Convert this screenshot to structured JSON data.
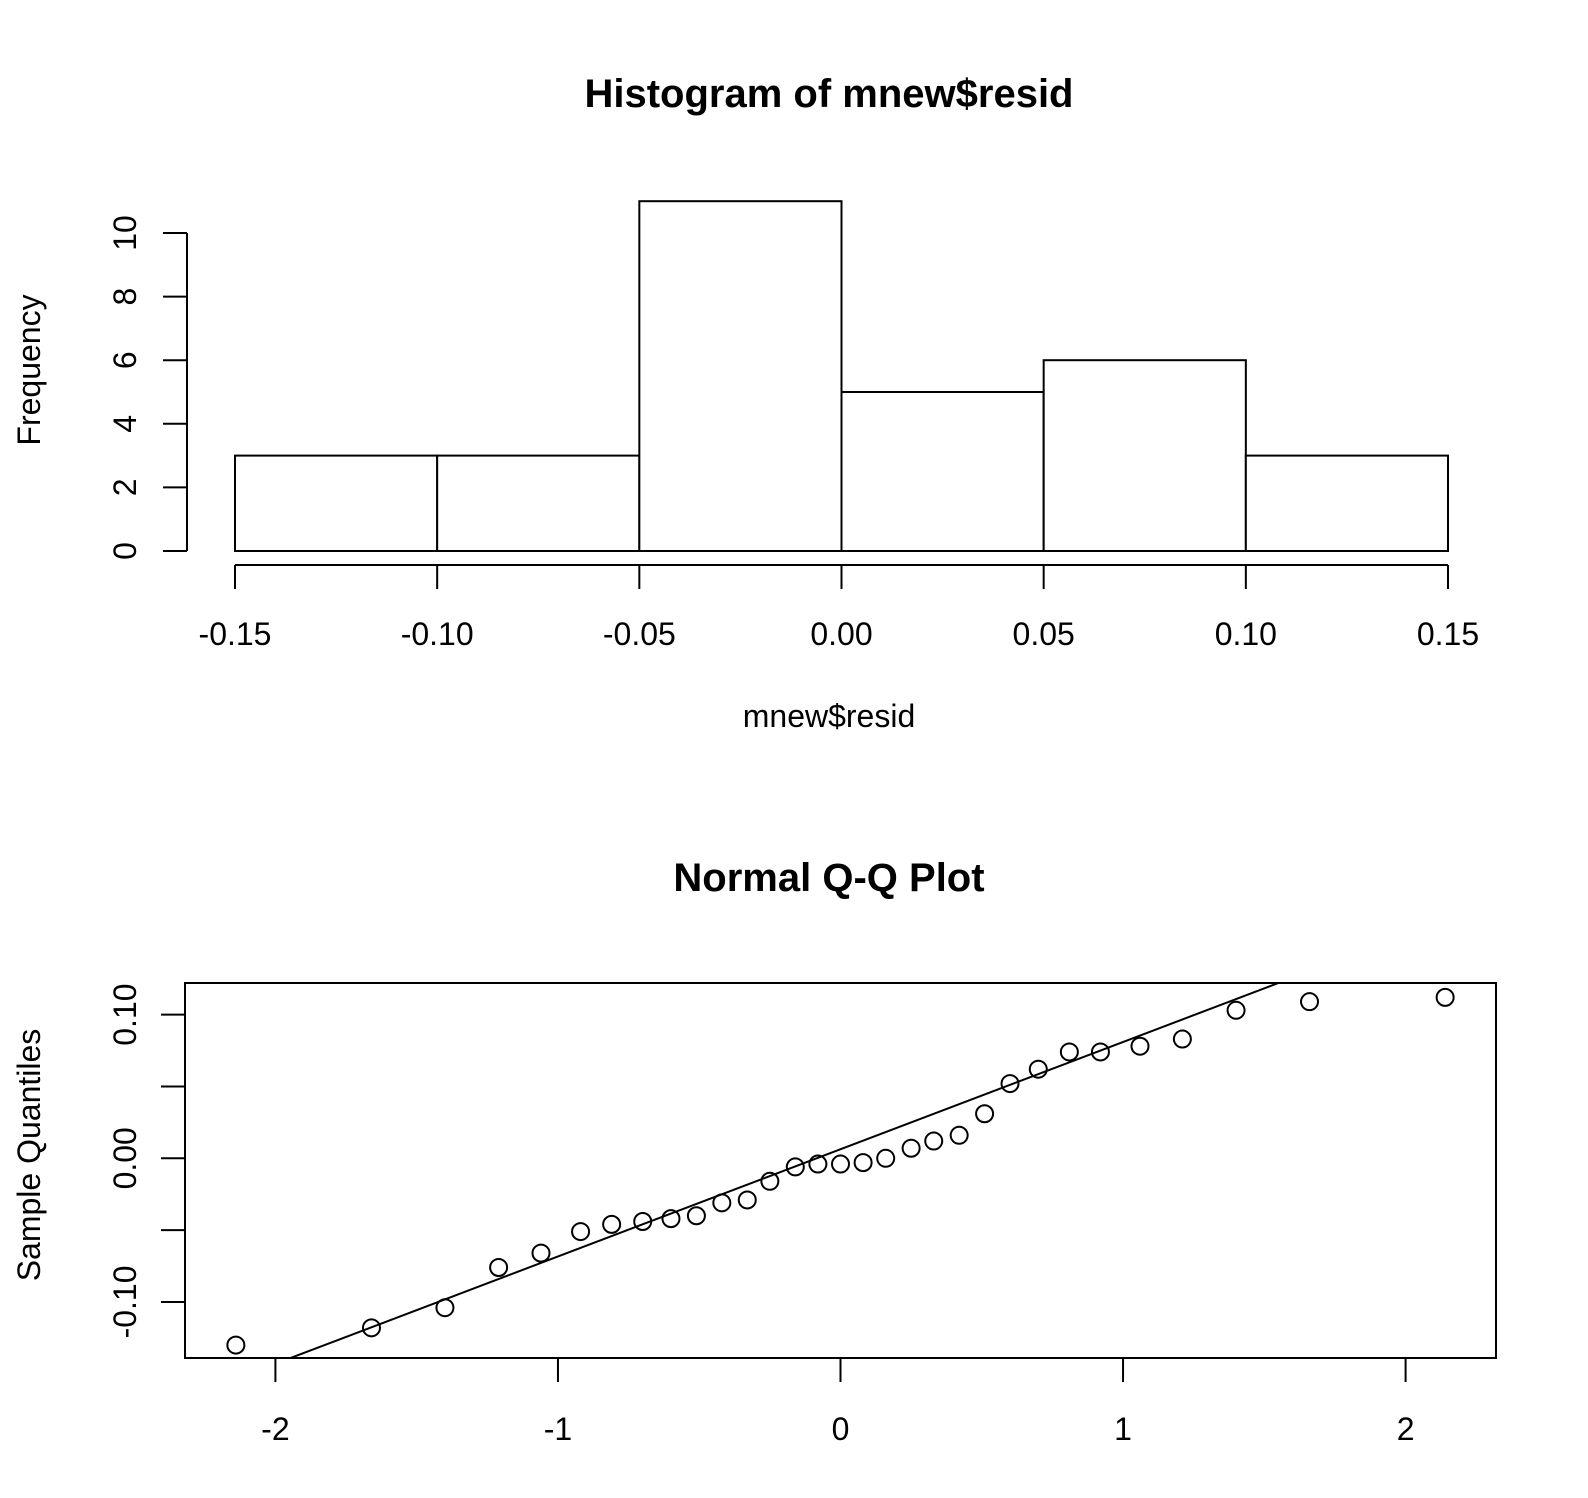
{
  "chart_data": [
    {
      "type": "bar",
      "title": "Histogram of mnew$resid",
      "xlabel": "mnew$resid",
      "ylabel": "Frequency",
      "bins": [
        {
          "from": -0.15,
          "to": -0.1,
          "count": 3
        },
        {
          "from": -0.1,
          "to": -0.05,
          "count": 3
        },
        {
          "from": -0.05,
          "to": 0.0,
          "count": 11
        },
        {
          "from": 0.0,
          "to": 0.05,
          "count": 5
        },
        {
          "from": 0.05,
          "to": 0.1,
          "count": 6
        },
        {
          "from": 0.1,
          "to": 0.15,
          "count": 3
        }
      ],
      "xlim": [
        -0.15,
        0.15
      ],
      "ylim": [
        0,
        11
      ],
      "xticks": [
        -0.15,
        -0.1,
        -0.05,
        0.0,
        0.05,
        0.1,
        0.15
      ],
      "xtick_labels": [
        "-0.15",
        "-0.10",
        "-0.05",
        "0.00",
        "0.05",
        "0.10",
        "0.15"
      ],
      "yticks": [
        0,
        2,
        4,
        6,
        8,
        10
      ],
      "ytick_labels": [
        "0",
        "2",
        "4",
        "6",
        "8",
        "10"
      ],
      "grid": false
    },
    {
      "type": "scatter",
      "title": "Normal Q-Q Plot",
      "xlabel": "",
      "ylabel": "Sample Quantiles",
      "points": [
        {
          "x": -2.14,
          "y": -0.13
        },
        {
          "x": -1.66,
          "y": -0.118
        },
        {
          "x": -1.4,
          "y": -0.104
        },
        {
          "x": -1.21,
          "y": -0.076
        },
        {
          "x": -1.06,
          "y": -0.066
        },
        {
          "x": -0.92,
          "y": -0.051
        },
        {
          "x": -0.81,
          "y": -0.046
        },
        {
          "x": -0.7,
          "y": -0.044
        },
        {
          "x": -0.6,
          "y": -0.042
        },
        {
          "x": -0.51,
          "y": -0.04
        },
        {
          "x": -0.42,
          "y": -0.031
        },
        {
          "x": -0.33,
          "y": -0.029
        },
        {
          "x": -0.25,
          "y": -0.016
        },
        {
          "x": -0.16,
          "y": -0.006
        },
        {
          "x": -0.08,
          "y": -0.004
        },
        {
          "x": 0.0,
          "y": -0.004
        },
        {
          "x": 0.08,
          "y": -0.003
        },
        {
          "x": 0.16,
          "y": 0.0
        },
        {
          "x": 0.25,
          "y": 0.007
        },
        {
          "x": 0.33,
          "y": 0.012
        },
        {
          "x": 0.42,
          "y": 0.016
        },
        {
          "x": 0.51,
          "y": 0.031
        },
        {
          "x": 0.6,
          "y": 0.052
        },
        {
          "x": 0.7,
          "y": 0.062
        },
        {
          "x": 0.81,
          "y": 0.074
        },
        {
          "x": 0.92,
          "y": 0.074
        },
        {
          "x": 1.06,
          "y": 0.078
        },
        {
          "x": 1.21,
          "y": 0.083
        },
        {
          "x": 1.4,
          "y": 0.103
        },
        {
          "x": 1.66,
          "y": 0.109
        },
        {
          "x": 2.14,
          "y": 0.112
        }
      ],
      "reference_line": {
        "x1": -1.96,
        "y1": -0.14,
        "x2": 1.55,
        "y2": 0.122
      },
      "xlim": [
        -2.32,
        2.32
      ],
      "ylim": [
        -0.139,
        0.122
      ],
      "xticks": [
        -2,
        -1,
        0,
        1,
        2
      ],
      "xtick_labels": [
        "-2",
        "-1",
        "0",
        "1",
        "2"
      ],
      "yticks": [
        -0.1,
        -0.05,
        0.0,
        0.05,
        0.1
      ],
      "ytick_labels": [
        "-0.10",
        "0.00",
        "0.10"
      ],
      "ytick_labeled_values": [
        -0.1,
        0.0,
        0.1
      ],
      "grid": false
    }
  ]
}
